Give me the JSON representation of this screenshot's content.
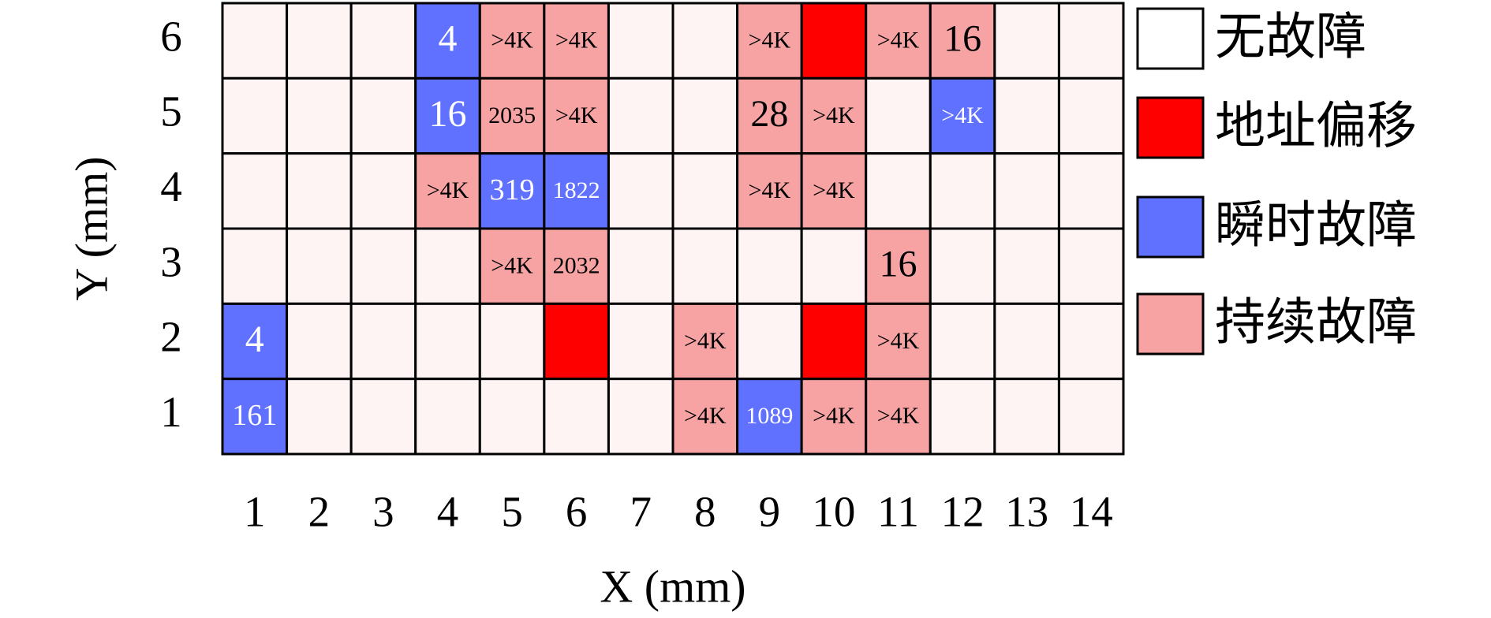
{
  "chart_data": {
    "type": "grid",
    "x_label": "X (mm)",
    "y_label": "Y (mm)",
    "x_categories": [
      "1",
      "2",
      "3",
      "4",
      "5",
      "6",
      "7",
      "8",
      "9",
      "10",
      "11",
      "12",
      "13",
      "14"
    ],
    "y_categories": [
      "6",
      "5",
      "4",
      "3",
      "2",
      "1"
    ],
    "legend": [
      {
        "name": "无故障",
        "color": "#fff4f4"
      },
      {
        "name": "地址偏移",
        "color": "#ff0000"
      },
      {
        "name": "瞬时故障",
        "color": "#6070ff"
      },
      {
        "name": "持续故障",
        "color": "#f7a3a3"
      }
    ],
    "states": [
      [
        0,
        0,
        0,
        2,
        3,
        3,
        0,
        0,
        3,
        1,
        3,
        3,
        0,
        0
      ],
      [
        0,
        0,
        0,
        2,
        3,
        3,
        0,
        0,
        3,
        3,
        0,
        2,
        0,
        0
      ],
      [
        0,
        0,
        0,
        3,
        2,
        2,
        0,
        0,
        3,
        3,
        0,
        0,
        0,
        0
      ],
      [
        0,
        0,
        0,
        0,
        3,
        3,
        0,
        0,
        0,
        0,
        3,
        0,
        0,
        0
      ],
      [
        2,
        0,
        0,
        0,
        0,
        1,
        0,
        3,
        0,
        1,
        3,
        0,
        0,
        0
      ],
      [
        2,
        0,
        0,
        0,
        0,
        0,
        0,
        3,
        2,
        3,
        3,
        0,
        0,
        0
      ]
    ],
    "labels": [
      [
        null,
        null,
        null,
        4,
        ">4K",
        ">4K",
        null,
        null,
        ">4K",
        null,
        ">4K",
        16,
        null,
        null
      ],
      [
        null,
        null,
        null,
        16,
        2035,
        ">4K",
        null,
        null,
        28,
        ">4K",
        null,
        ">4K",
        null,
        null
      ],
      [
        null,
        null,
        null,
        ">4K",
        319,
        1822,
        null,
        null,
        ">4K",
        ">4K",
        null,
        null,
        null,
        null
      ],
      [
        null,
        null,
        null,
        null,
        ">4K",
        2032,
        null,
        null,
        null,
        null,
        16,
        null,
        null,
        null
      ],
      [
        4,
        null,
        null,
        null,
        null,
        null,
        null,
        ">4K",
        null,
        null,
        ">4K",
        null,
        null,
        null
      ],
      [
        161,
        null,
        null,
        null,
        null,
        null,
        null,
        ">4K",
        1089,
        ">4K",
        ">4K",
        null,
        null,
        null
      ]
    ]
  }
}
